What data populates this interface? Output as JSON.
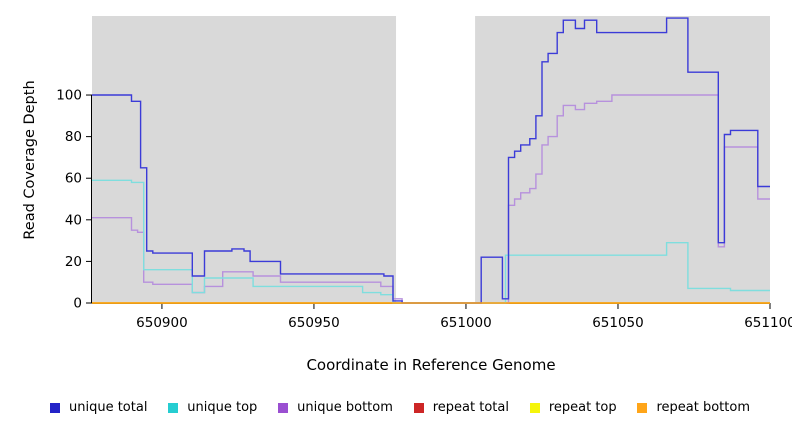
{
  "chart_data": {
    "type": "line",
    "subtype": "step",
    "title": "",
    "xlabel": "Coordinate in Reference Genome",
    "ylabel": "Read Coverage Depth",
    "x_range": [
      650877,
      651100
    ],
    "y_range": [
      0,
      138
    ],
    "x_ticks": [
      650900,
      650950,
      651000,
      651050,
      651100
    ],
    "y_ticks": [
      0,
      20,
      40,
      60,
      80,
      100
    ],
    "grid": false,
    "plot_bg": "#d9d9d9",
    "gap_region": {
      "x_start": 650977,
      "x_end": 651003,
      "color": "#ffffff"
    },
    "series": [
      {
        "name": "repeat total",
        "color": "#cd2626",
        "points": [
          [
            650877,
            0
          ],
          [
            651100,
            0
          ]
        ]
      },
      {
        "name": "repeat top",
        "color": "#f2ef1d",
        "points": [
          [
            650877,
            0
          ],
          [
            651100,
            0
          ]
        ]
      },
      {
        "name": "unique bottom",
        "color": "#b791dd",
        "points": [
          [
            650877,
            41
          ],
          [
            650889,
            41
          ],
          [
            650890,
            35
          ],
          [
            650892,
            34
          ],
          [
            650894,
            10
          ],
          [
            650897,
            9
          ],
          [
            650909,
            9
          ],
          [
            650910,
            5
          ],
          [
            650913,
            5
          ],
          [
            650914,
            8
          ],
          [
            650919,
            8
          ],
          [
            650920,
            15
          ],
          [
            650929,
            15
          ],
          [
            650930,
            13
          ],
          [
            650938,
            13
          ],
          [
            650939,
            10
          ],
          [
            650971,
            10
          ],
          [
            650972,
            8
          ],
          [
            650975,
            8
          ],
          [
            650976,
            2
          ],
          [
            650979,
            0
          ],
          [
            651013,
            0
          ],
          [
            651014,
            47
          ],
          [
            651016,
            50
          ],
          [
            651018,
            53
          ],
          [
            651021,
            55
          ],
          [
            651023,
            62
          ],
          [
            651025,
            76
          ],
          [
            651027,
            80
          ],
          [
            651030,
            90
          ],
          [
            651032,
            95
          ],
          [
            651036,
            93
          ],
          [
            651039,
            96
          ],
          [
            651043,
            97
          ],
          [
            651048,
            100
          ],
          [
            651082,
            100
          ],
          [
            651083,
            27
          ],
          [
            651085,
            75
          ],
          [
            651095,
            75
          ],
          [
            651096,
            50
          ],
          [
            651100,
            50
          ]
        ]
      },
      {
        "name": "unique top",
        "color": "#7fdede",
        "points": [
          [
            650877,
            59
          ],
          [
            650889,
            59
          ],
          [
            650890,
            58
          ],
          [
            650893,
            58
          ],
          [
            650894,
            16
          ],
          [
            650909,
            16
          ],
          [
            650910,
            5
          ],
          [
            650913,
            5
          ],
          [
            650914,
            12
          ],
          [
            650929,
            12
          ],
          [
            650930,
            8
          ],
          [
            650965,
            8
          ],
          [
            650966,
            5
          ],
          [
            650971,
            5
          ],
          [
            650972,
            4
          ],
          [
            650975,
            4
          ],
          [
            650976,
            0
          ],
          [
            651012,
            0
          ],
          [
            651013,
            23
          ],
          [
            651065,
            23
          ],
          [
            651066,
            29
          ],
          [
            651072,
            29
          ],
          [
            651073,
            7
          ],
          [
            651086,
            7
          ],
          [
            651087,
            6
          ],
          [
            651100,
            6
          ]
        ]
      },
      {
        "name": "unique total",
        "color": "#3b3bd8",
        "points": [
          [
            650877,
            100
          ],
          [
            650889,
            100
          ],
          [
            650890,
            97
          ],
          [
            650892,
            97
          ],
          [
            650893,
            65
          ],
          [
            650894,
            65
          ],
          [
            650895,
            25
          ],
          [
            650897,
            24
          ],
          [
            650909,
            24
          ],
          [
            650910,
            13
          ],
          [
            650913,
            13
          ],
          [
            650914,
            25
          ],
          [
            650922,
            25
          ],
          [
            650923,
            26
          ],
          [
            650926,
            26
          ],
          [
            650927,
            25
          ],
          [
            650929,
            20
          ],
          [
            650938,
            20
          ],
          [
            650939,
            14
          ],
          [
            650972,
            14
          ],
          [
            650973,
            13
          ],
          [
            650975,
            13
          ],
          [
            650976,
            1
          ],
          [
            650979,
            0
          ],
          [
            651004,
            0
          ],
          [
            651005,
            22
          ],
          [
            651011,
            22
          ],
          [
            651012,
            2
          ],
          [
            651014,
            70
          ],
          [
            651016,
            73
          ],
          [
            651018,
            76
          ],
          [
            651021,
            79
          ],
          [
            651023,
            90
          ],
          [
            651025,
            116
          ],
          [
            651027,
            120
          ],
          [
            651030,
            130
          ],
          [
            651032,
            136
          ],
          [
            651036,
            132
          ],
          [
            651039,
            136
          ],
          [
            651043,
            130
          ],
          [
            651065,
            130
          ],
          [
            651066,
            137
          ],
          [
            651072,
            137
          ],
          [
            651073,
            111
          ],
          [
            651082,
            111
          ],
          [
            651083,
            29
          ],
          [
            651085,
            81
          ],
          [
            651087,
            83
          ],
          [
            651095,
            83
          ],
          [
            651096,
            56
          ],
          [
            651100,
            56
          ]
        ]
      },
      {
        "name": "repeat bottom",
        "color": "#ffa519",
        "points": [
          [
            650877,
            0
          ],
          [
            651100,
            0
          ]
        ]
      }
    ],
    "legend": [
      {
        "label": "unique total",
        "color": "#2323c8"
      },
      {
        "label": "unique top",
        "color": "#26cdd1"
      },
      {
        "label": "unique bottom",
        "color": "#9a4fd1"
      },
      {
        "label": "repeat total",
        "color": "#cd2626"
      },
      {
        "label": "repeat top",
        "color": "#f5f50a"
      },
      {
        "label": "repeat bottom",
        "color": "#ffa519"
      }
    ],
    "legend_position": "bottom"
  }
}
